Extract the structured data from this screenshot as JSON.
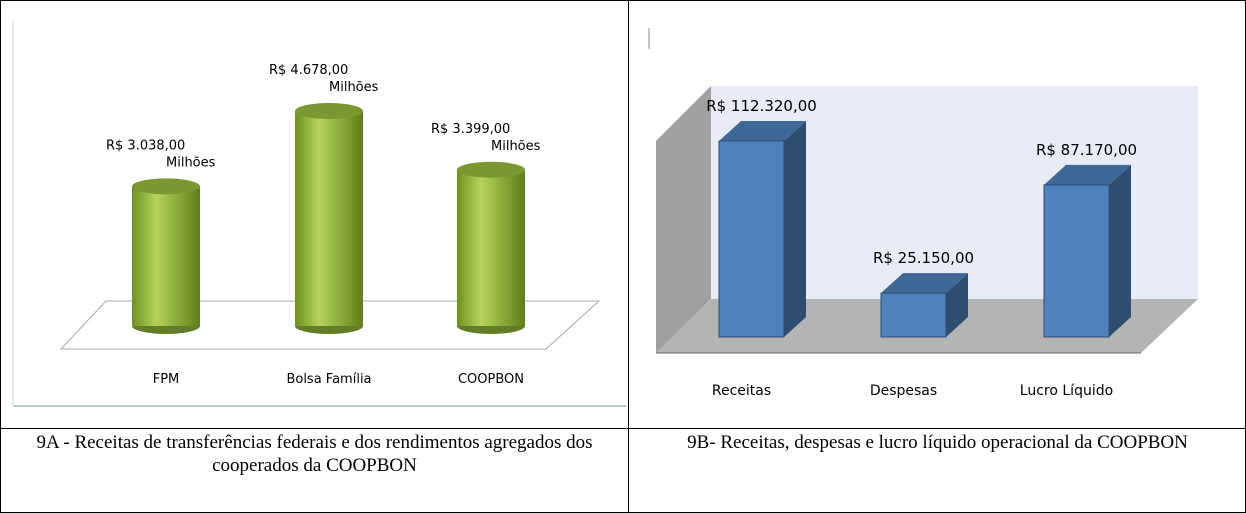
{
  "chart_data": [
    {
      "type": "cylinder",
      "categories": [
        "FPM",
        "Bolsa Família",
        "COOPBON"
      ],
      "values": [
        3038,
        4678,
        3399
      ],
      "value_labels": [
        [
          "R$ 3.038,00",
          "Milhões"
        ],
        [
          "R$ 4.678,00",
          "Milhões"
        ],
        [
          "R$ 3.399,00",
          "Milhões"
        ]
      ],
      "color": "#8fb33a"
    },
    {
      "type": "bar3d",
      "categories": [
        "Receitas",
        "Despesas",
        "Lucro Líquido"
      ],
      "values": [
        112320,
        25150,
        87170
      ],
      "value_labels": [
        "R$ 112.320,00",
        "R$ 25.150,00",
        "R$ 87.170,00"
      ],
      "color": "#4f81bd"
    }
  ],
  "captions": [
    "9A - Receitas de transferências federais e dos rendimentos agregados dos cooperados da COOPBON",
    "9B- Receitas, despesas e lucro líquido operacional  da COOPBON"
  ]
}
